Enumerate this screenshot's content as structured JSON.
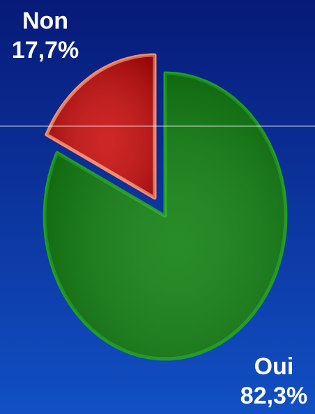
{
  "chart_data": {
    "type": "pie",
    "categories": [
      "Oui",
      "Non"
    ],
    "values": [
      82.3,
      17.7
    ],
    "value_labels": [
      "82,3%",
      "17,7%"
    ],
    "colors": [
      "#0a7d0a",
      "#c80808"
    ],
    "edgecolors": [
      "#1ea01e",
      "#ff8a6a"
    ]
  }
}
